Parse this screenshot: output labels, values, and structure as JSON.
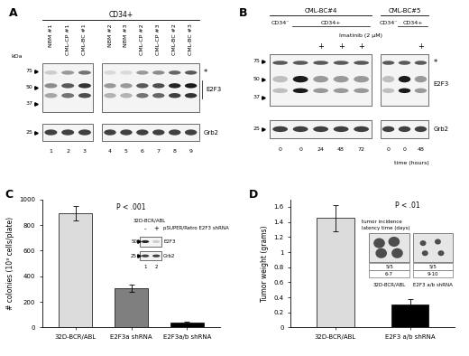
{
  "blots": {
    "A": {
      "panel": "A",
      "header": "CD34+",
      "unit": "kDa",
      "markers": [
        75,
        50,
        37
      ],
      "loading_marker": 25,
      "membranes": [
        [
          {
            "label": "NBM #1",
            "number": 1
          },
          {
            "label": "CML-CP #1",
            "number": 2
          },
          {
            "label": "CML-BC #1",
            "number": 3
          }
        ],
        [
          {
            "label": "NBM #2",
            "number": 4
          },
          {
            "label": "NBM #3",
            "number": 5
          },
          {
            "label": "CML-CP #2",
            "number": 6
          },
          {
            "label": "CML-CP #3",
            "number": 7
          },
          {
            "label": "CML-BC #2",
            "number": 8
          },
          {
            "label": "CML-BC #3",
            "number": 9
          }
        ]
      ],
      "nonspecific": "*",
      "target": "E2F3",
      "loading": "Grb2"
    },
    "B": {
      "panel": "B",
      "treatment": "Imatinib (2 μM)",
      "treated_mark": "+",
      "time_label": "time (hours)",
      "markers": [
        75,
        50,
        37
      ],
      "loading_marker": 25,
      "nonspecific": "*",
      "target": "E2F3",
      "loading": "Grb2",
      "samples": [
        {
          "name": "CML-BC#4",
          "populations": [
            {
              "label": "CD34⁻",
              "lanes": [
                {
                  "imatinib": false,
                  "time": 0
                }
              ]
            },
            {
              "label": "CD34+",
              "lanes": [
                {
                  "imatinib": false,
                  "time": 0
                },
                {
                  "imatinib": true,
                  "time": 24
                },
                {
                  "imatinib": true,
                  "time": 48
                },
                {
                  "imatinib": true,
                  "time": 72
                }
              ]
            }
          ]
        },
        {
          "name": "CML-BC#5",
          "populations": [
            {
              "label": "CD34⁻",
              "lanes": [
                {
                  "imatinib": false,
                  "time": 0
                }
              ]
            },
            {
              "label": "CD34+",
              "lanes": [
                {
                  "imatinib": false,
                  "time": 0
                },
                {
                  "imatinib": true,
                  "time": 48
                }
              ]
            }
          ]
        }
      ]
    }
  },
  "chart_data": [
    {
      "type": "bar",
      "panel": "C",
      "y_label": "# colonies (10³ cells/plate)",
      "categories": [
        "32D-BCR/ABL",
        "E2F3a shRNA",
        "E2F3a/b shRNA"
      ],
      "values": [
        890,
        305,
        40
      ],
      "errors": [
        55,
        30,
        8
      ],
      "colors": [
        "#dcdcdc",
        "#7f7f7f",
        "#000000"
      ],
      "ylim": [
        0,
        1000
      ],
      "yticks": [
        0,
        200,
        400,
        600,
        800,
        1000
      ],
      "annotation": "P < .001",
      "inset": {
        "title": "32D-BCR/ABL",
        "construct": "pSUPER/Retro E2F3 shRNA",
        "conditions": [
          "-",
          "+"
        ],
        "markers": [
          50,
          25
        ],
        "bands": [
          "E2F3",
          "Grb2"
        ],
        "lanes": [
          1,
          2
        ]
      }
    },
    {
      "type": "bar",
      "panel": "D",
      "y_label": "Tumor weight (grams)",
      "categories": [
        "32D-BCR/ABL",
        "E2F3 a/b shRNA"
      ],
      "values": [
        1.45,
        0.3
      ],
      "errors": [
        0.17,
        0.08
      ],
      "colors": [
        "#dcdcdc",
        "#000000"
      ],
      "ylim": [
        0,
        1.7
      ],
      "yticks": [
        0,
        0.2,
        0.4,
        0.6,
        0.8,
        1,
        1.2,
        1.4,
        1.6
      ],
      "annotation": "P < .01",
      "inset": {
        "rows": [
          {
            "label": "tumor incidence",
            "values": [
              "5/5",
              "5/5"
            ]
          },
          {
            "label": "latency time (days)",
            "values": [
              "6-7",
              "9-10"
            ]
          }
        ],
        "groups": [
          "32D-BCR/ABL",
          "E2F3 a/b shRNA"
        ]
      }
    }
  ]
}
